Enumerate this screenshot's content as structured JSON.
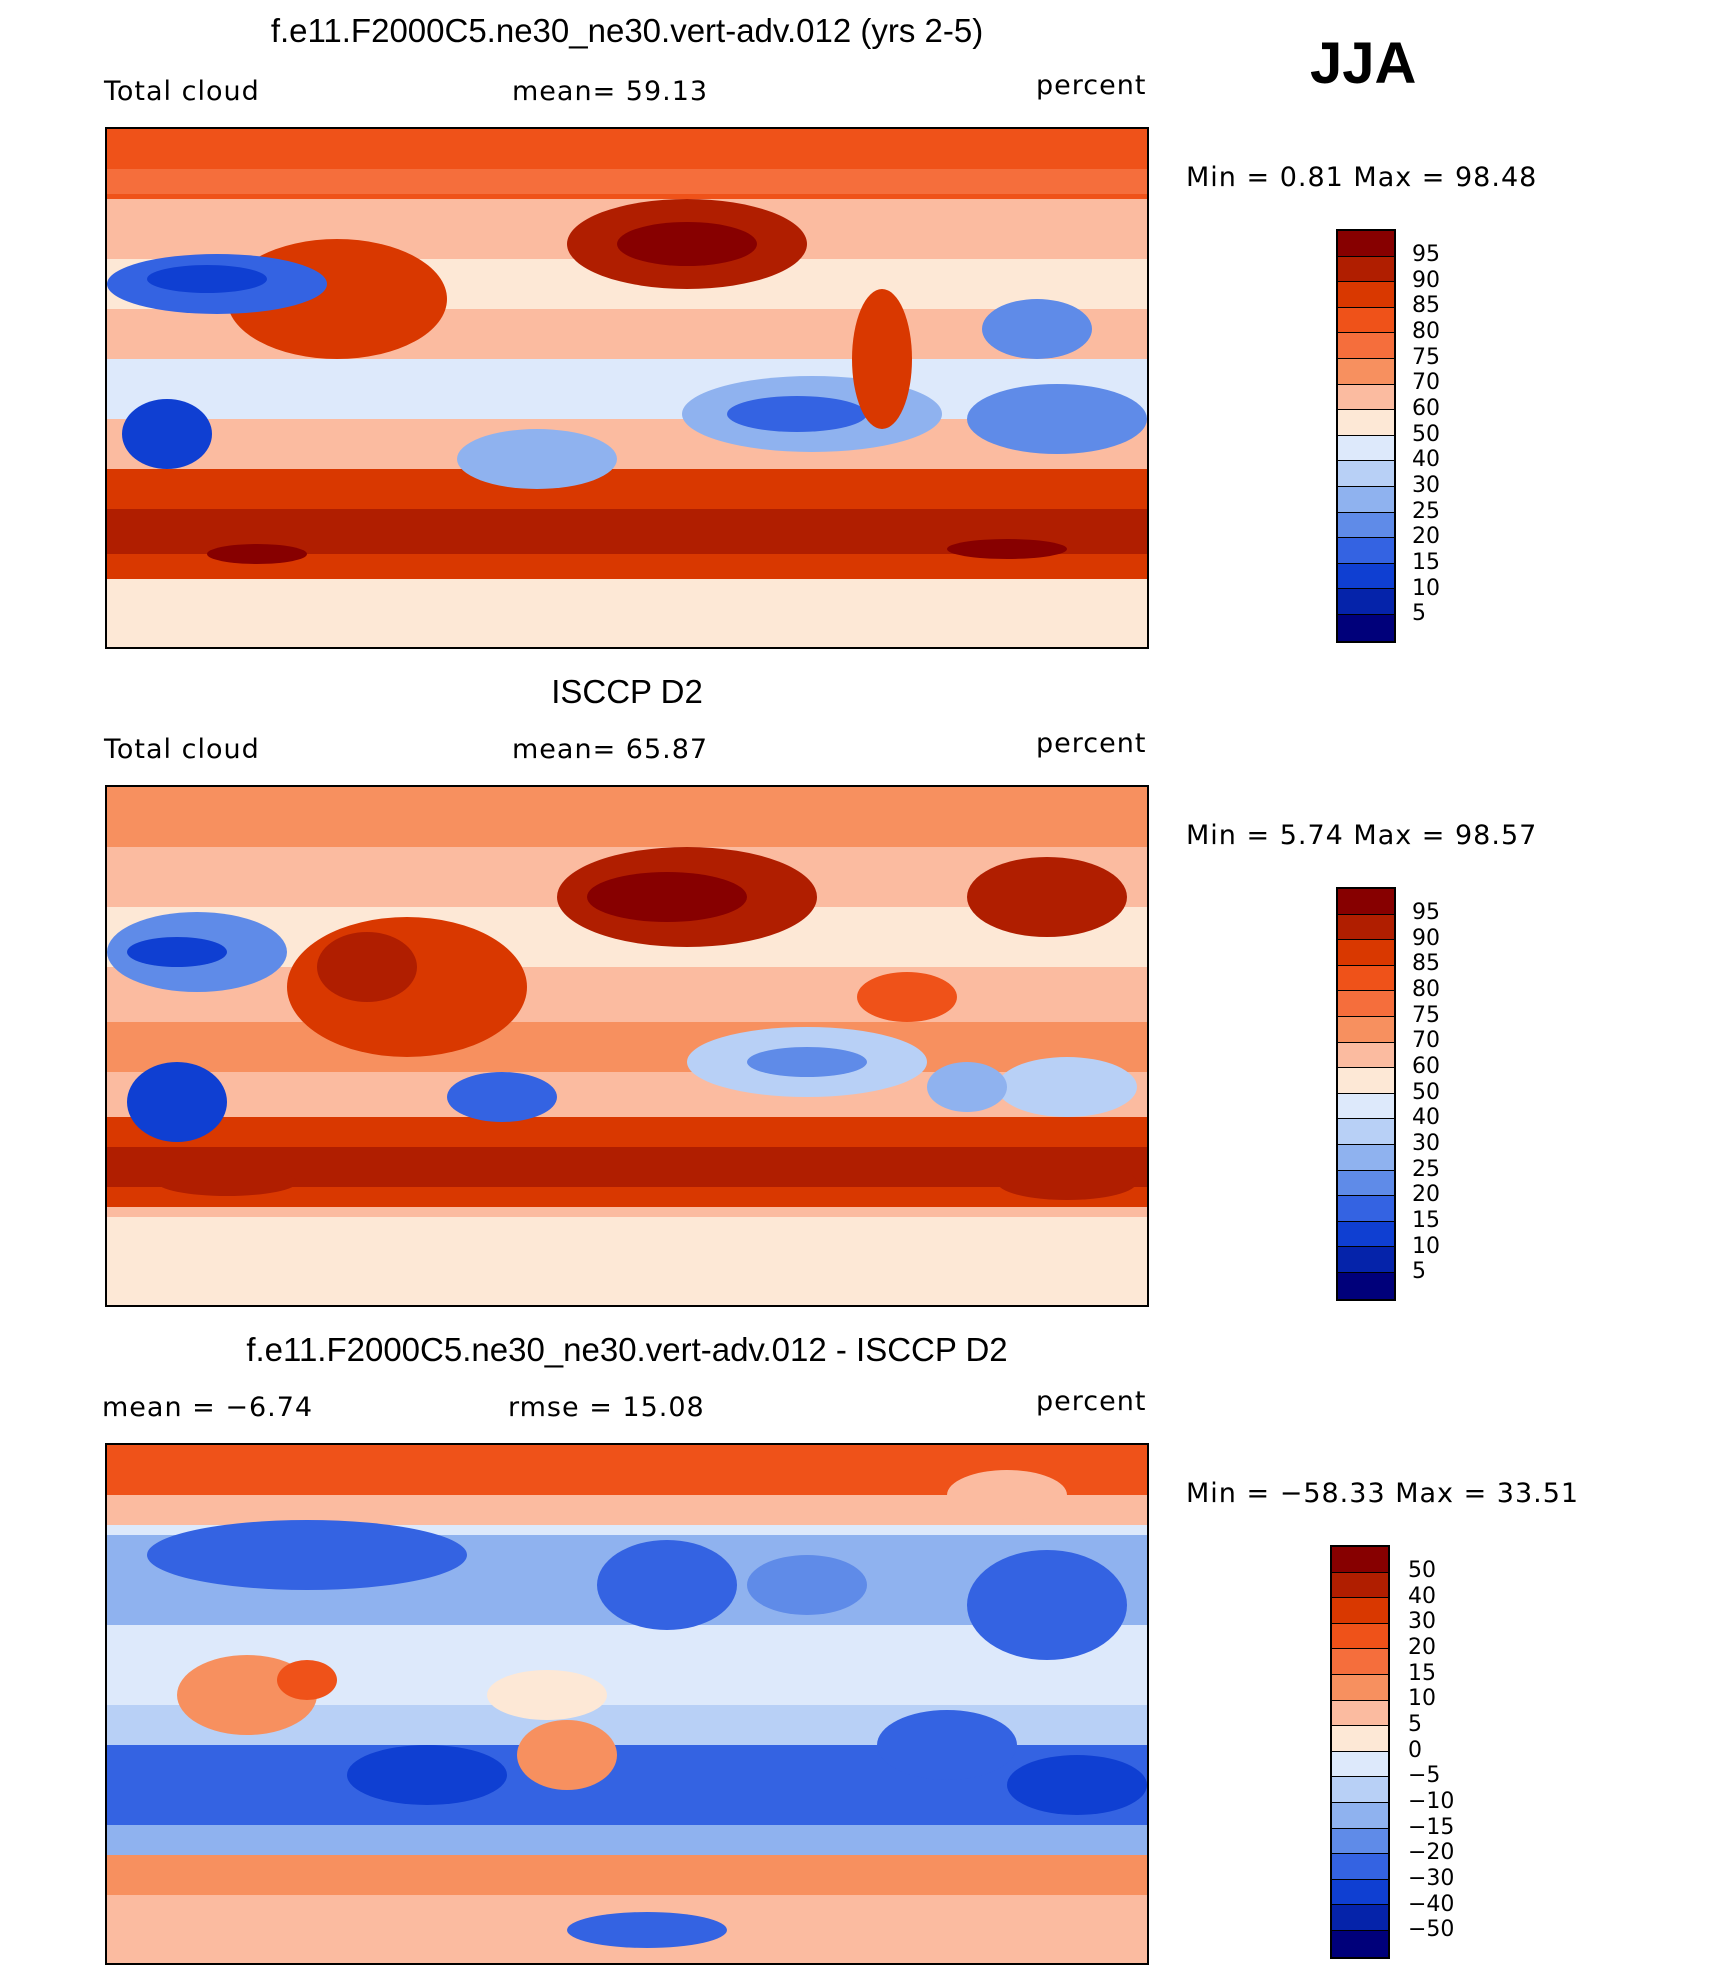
{
  "season": "JJA",
  "panels": [
    {
      "title": "f.e11.F2000C5.ne30_ne30.vert-adv.012 (yrs 2-5)",
      "left_label": "Total cloud",
      "center_label": "mean=   59.13",
      "right_label": "percent",
      "minmax": "Min =    0.81  Max =    98.48",
      "colorbar_labels": [
        "95",
        "90",
        "85",
        "80",
        "75",
        "70",
        "60",
        "50",
        "40",
        "30",
        "25",
        "20",
        "15",
        "10",
        "5"
      ]
    },
    {
      "title": "ISCCP D2",
      "left_label": "Total cloud",
      "center_label": "mean=   65.87",
      "right_label": "percent",
      "minmax": "Min =    5.74  Max =    98.57",
      "colorbar_labels": [
        "95",
        "90",
        "85",
        "80",
        "75",
        "70",
        "60",
        "50",
        "40",
        "30",
        "25",
        "20",
        "15",
        "10",
        "5"
      ]
    },
    {
      "title": "f.e11.F2000C5.ne30_ne30.vert-adv.012 - ISCCP D2",
      "left_label": "mean  =   −6.74",
      "center_label": "rmse  =    15.08",
      "right_label": "percent",
      "minmax": "Min  = −58.33  Max  =    33.51",
      "colorbar_labels": [
        "50",
        "40",
        "30",
        "20",
        "15",
        "10",
        "5",
        "0",
        "−5",
        "−10",
        "−15",
        "−20",
        "−30",
        "−40",
        "−50"
      ]
    }
  ],
  "colors": {
    "palette": [
      "#870000",
      "#b01e00",
      "#d93800",
      "#ef5219",
      "#f56e3c",
      "#f7905f",
      "#fbbba0",
      "#fde8d6",
      "#dde9fb",
      "#b8d0f6",
      "#8fb2ef",
      "#5f8be8",
      "#3463e2",
      "#0f3fd2",
      "#0523aa",
      "#00007a"
    ]
  }
}
